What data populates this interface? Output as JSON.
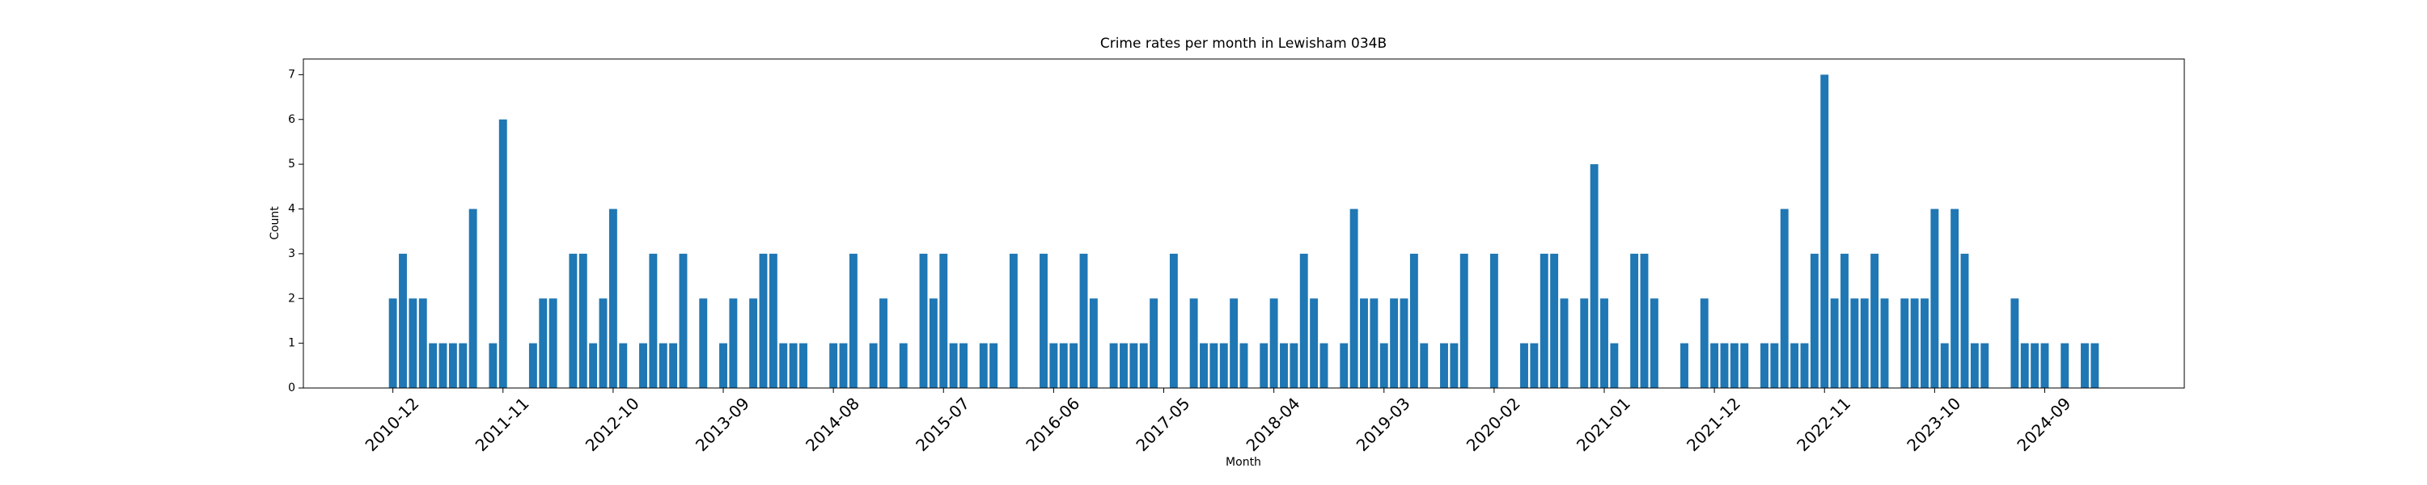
{
  "chart_data": {
    "type": "bar",
    "title": "Crime rates per month in Lewisham 034B",
    "x_label": "Month",
    "y_label": "Count",
    "color": "#1f77b4",
    "categories": [
      "2010-12",
      null,
      null,
      null,
      null,
      null,
      null,
      null,
      null,
      null,
      null,
      "2011-11",
      null,
      null,
      null,
      null,
      null,
      null,
      null,
      null,
      null,
      null,
      "2012-10",
      null,
      null,
      null,
      null,
      null,
      null,
      null,
      null,
      null,
      null,
      "2013-09",
      null,
      null,
      null,
      null,
      null,
      null,
      null,
      null,
      null,
      null,
      "2014-08",
      null,
      null,
      null,
      null,
      null,
      null,
      null,
      null,
      null,
      null,
      "2015-07",
      null,
      null,
      null,
      null,
      null,
      null,
      null,
      null,
      null,
      null,
      "2016-06",
      null,
      null,
      null,
      null,
      null,
      null,
      null,
      null,
      null,
      null,
      "2017-05",
      null,
      null,
      null,
      null,
      null,
      null,
      null,
      null,
      null,
      null,
      "2018-04",
      null,
      null,
      null,
      null,
      null,
      null,
      null,
      null,
      null,
      null,
      "2019-03",
      null,
      null,
      null,
      null,
      null,
      null,
      null,
      null,
      null,
      null,
      "2020-02",
      null,
      null,
      null,
      null,
      null,
      null,
      null,
      null,
      null,
      null,
      "2021-01",
      null,
      null,
      null,
      null,
      null,
      null,
      null,
      null,
      null,
      null,
      "2021-12",
      null,
      null,
      null,
      null,
      null,
      null,
      null,
      null,
      null,
      null,
      "2022-11",
      null,
      null,
      null,
      null,
      null,
      null,
      null,
      null,
      null,
      null,
      "2023-10",
      null,
      null,
      null,
      null,
      null,
      null,
      null,
      null,
      null,
      null,
      "2024-09",
      null,
      null,
      null,
      null,
      null
    ],
    "values": [
      2,
      3,
      2,
      2,
      1,
      1,
      1,
      1,
      4,
      0,
      1,
      6,
      0,
      0,
      1,
      2,
      2,
      0,
      3,
      3,
      1,
      2,
      4,
      1,
      0,
      1,
      3,
      1,
      1,
      3,
      0,
      2,
      0,
      1,
      2,
      0,
      2,
      3,
      3,
      1,
      1,
      1,
      0,
      0,
      1,
      1,
      3,
      0,
      1,
      2,
      0,
      1,
      0,
      3,
      2,
      3,
      1,
      1,
      0,
      1,
      1,
      0,
      3,
      0,
      0,
      3,
      1,
      1,
      1,
      3,
      2,
      0,
      1,
      1,
      1,
      1,
      2,
      0,
      3,
      0,
      2,
      1,
      1,
      1,
      2,
      1,
      0,
      1,
      2,
      1,
      1,
      3,
      2,
      1,
      0,
      1,
      4,
      2,
      2,
      1,
      2,
      2,
      3,
      1,
      0,
      1,
      1,
      3,
      0,
      0,
      3,
      0,
      0,
      1,
      1,
      3,
      3,
      2,
      0,
      2,
      5,
      2,
      1,
      0,
      3,
      3,
      2,
      0,
      0,
      1,
      0,
      2,
      1,
      1,
      1,
      1,
      0,
      1,
      1,
      4,
      1,
      1,
      3,
      7,
      2,
      3,
      2,
      2,
      3,
      2,
      0,
      2,
      2,
      2,
      4,
      1,
      4,
      3,
      1,
      1,
      0,
      0,
      2,
      1,
      1,
      1,
      0,
      1,
      0,
      1,
      1
    ],
    "ylim": [
      0,
      7.35
    ],
    "yticks": [
      0,
      1,
      2,
      3,
      4,
      5,
      6,
      7
    ],
    "grid": false
  }
}
